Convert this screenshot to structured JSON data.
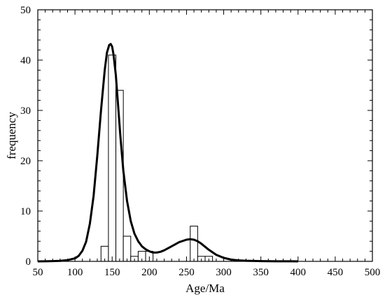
{
  "chart_data": {
    "type": "bar",
    "title": "",
    "xlabel": "Age/Ma",
    "ylabel": "frequency",
    "xlim": [
      50,
      500
    ],
    "ylim": [
      0,
      50
    ],
    "x_ticks": [
      50,
      100,
      150,
      200,
      250,
      300,
      350,
      400,
      450,
      500
    ],
    "x_minor_step": 10,
    "y_ticks": [
      0,
      10,
      20,
      30,
      40,
      50
    ],
    "y_minor_step": 2,
    "grid": false,
    "legend": "none",
    "bin_width": 10,
    "histogram": [
      {
        "x": 140,
        "value": 3
      },
      {
        "x": 150,
        "value": 41
      },
      {
        "x": 160,
        "value": 34
      },
      {
        "x": 170,
        "value": 5
      },
      {
        "x": 180,
        "value": 1
      },
      {
        "x": 190,
        "value": 2
      },
      {
        "x": 200,
        "value": 2
      },
      {
        "x": 260,
        "value": 7
      },
      {
        "x": 270,
        "value": 1
      },
      {
        "x": 280,
        "value": 1
      }
    ],
    "curve": {
      "x": [
        50,
        60,
        70,
        80,
        90,
        100,
        105,
        110,
        115,
        120,
        125,
        130,
        135,
        140,
        143,
        146,
        148,
        150,
        152,
        155,
        158,
        161,
        165,
        170,
        175,
        180,
        185,
        190,
        195,
        200,
        205,
        210,
        215,
        220,
        230,
        240,
        250,
        255,
        260,
        265,
        270,
        280,
        290,
        300,
        310,
        320,
        330,
        340,
        350,
        360,
        370,
        380,
        390,
        400
      ],
      "y": [
        0,
        0.02,
        0.05,
        0.1,
        0.25,
        0.6,
        1.1,
        2.1,
        3.9,
        7.5,
        13,
        21,
        30,
        38,
        41.5,
        43,
        43.2,
        42.7,
        41,
        37,
        31,
        25,
        18,
        12,
        8,
        5.5,
        4,
        3,
        2.4,
        2,
        1.75,
        1.75,
        1.9,
        2.2,
        3.0,
        3.8,
        4.3,
        4.4,
        4.3,
        4.0,
        3.5,
        2.3,
        1.3,
        0.7,
        0.35,
        0.2,
        0.12,
        0.08,
        0.05,
        0.03,
        0.02,
        0.01,
        0.01,
        0
      ]
    }
  }
}
